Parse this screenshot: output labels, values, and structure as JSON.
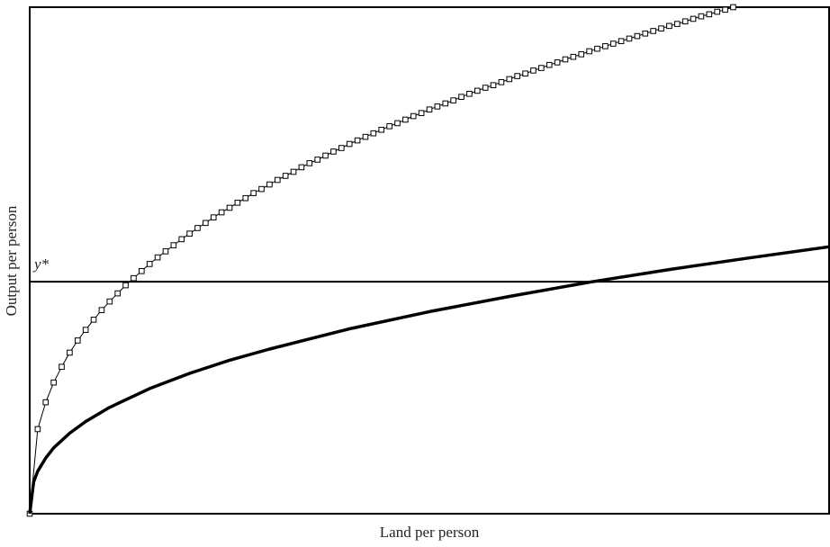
{
  "chart_data": {
    "type": "line",
    "x_label": "Land per person",
    "y_label": "Output per person",
    "xlim": [
      0,
      100
    ],
    "ylim": [
      0,
      100
    ],
    "annotations": [
      {
        "label": "y*",
        "value": 45.8
      }
    ],
    "series": [
      {
        "color": "#000000",
        "marker": "square",
        "line_width": 1,
        "x": [
          0,
          1,
          2,
          3,
          4,
          5,
          6,
          7,
          8,
          9,
          10,
          11,
          12,
          13,
          14,
          15,
          16,
          17,
          18,
          19,
          20,
          21,
          22,
          23,
          24,
          25,
          26,
          27,
          28,
          29,
          30,
          31,
          32,
          33,
          34,
          35,
          36,
          37,
          38,
          39,
          40,
          41,
          42,
          43,
          44,
          45,
          46,
          47,
          48,
          49,
          50,
          51,
          52,
          53,
          54,
          55,
          56,
          57,
          58,
          59,
          60,
          61,
          62,
          63,
          64,
          65,
          66,
          67,
          68,
          69,
          70,
          71,
          72,
          73,
          74,
          75,
          76,
          77,
          78,
          79,
          80,
          81,
          82,
          83,
          84,
          85,
          86,
          87,
          88
        ],
        "values": [
          0,
          16.7,
          22.0,
          25.9,
          29.0,
          31.8,
          34.2,
          36.3,
          38.3,
          40.2,
          41.9,
          43.5,
          45.1,
          46.5,
          47.9,
          49.3,
          50.6,
          51.8,
          53.0,
          54.2,
          55.3,
          56.4,
          57.4,
          58.5,
          59.5,
          60.4,
          61.4,
          62.3,
          63.3,
          64.1,
          65.0,
          65.9,
          66.7,
          67.5,
          68.4,
          69.2,
          69.9,
          70.7,
          71.5,
          72.2,
          73.0,
          73.7,
          74.4,
          75.1,
          75.8,
          76.5,
          77.1,
          77.8,
          78.5,
          79.1,
          79.8,
          80.4,
          81.0,
          81.6,
          82.3,
          82.9,
          83.5,
          84.1,
          84.6,
          85.2,
          85.8,
          86.4,
          86.9,
          87.5,
          88.0,
          88.6,
          89.1,
          89.7,
          90.2,
          90.7,
          91.3,
          91.8,
          92.3,
          92.8,
          93.3,
          93.8,
          94.3,
          94.8,
          95.3,
          95.8,
          96.3,
          96.7,
          97.2,
          97.7,
          98.2,
          98.6,
          99.1,
          99.5,
          100.0
        ]
      },
      {
        "color": "#000000",
        "marker": "none",
        "line_width": 3.5,
        "x": [
          0,
          0.5,
          1,
          2,
          3,
          5,
          7,
          10,
          15,
          20,
          25,
          30,
          40,
          50,
          60,
          70,
          80,
          90,
          100
        ],
        "values": [
          0,
          6.3,
          8.4,
          11.0,
          13.0,
          15.9,
          18.2,
          21.0,
          24.7,
          27.7,
          30.3,
          32.5,
          36.5,
          39.9,
          42.9,
          45.7,
          48.2,
          50.5,
          52.7
        ]
      }
    ]
  }
}
